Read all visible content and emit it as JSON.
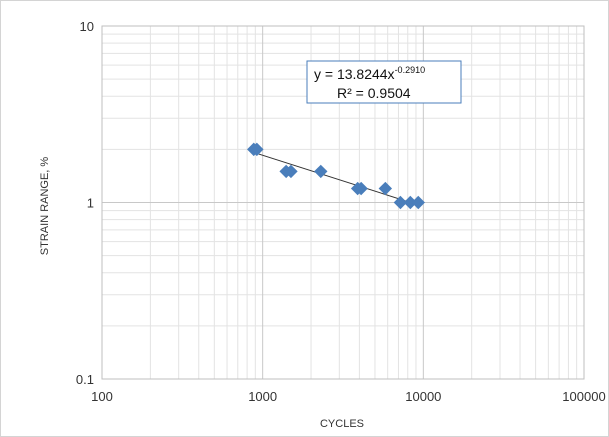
{
  "chart_data": {
    "type": "scatter",
    "title": "",
    "xlabel": "CYCLES",
    "ylabel": "STRAIN RANGE, %",
    "xscale": "log",
    "yscale": "log",
    "xlim": [
      100,
      100000
    ],
    "ylim": [
      0.1,
      10
    ],
    "x_ticks": [
      "100",
      "1000",
      "10000",
      "100000"
    ],
    "y_ticks": [
      "0.1",
      "1",
      "10"
    ],
    "grid": true,
    "legend": "none",
    "series": [
      {
        "color": "#4a7ebb",
        "marker": "diamond",
        "points": [
          [
            880,
            2.0
          ],
          [
            920,
            2.0
          ],
          [
            1400,
            1.5
          ],
          [
            1500,
            1.5
          ],
          [
            2300,
            1.5
          ],
          [
            3900,
            1.2
          ],
          [
            4100,
            1.2
          ],
          [
            5800,
            1.2
          ],
          [
            7200,
            1.0
          ],
          [
            8300,
            1.0
          ],
          [
            9300,
            1.0
          ]
        ]
      }
    ],
    "trendline": {
      "type": "power",
      "a": 13.8244,
      "b": -0.291,
      "x_range": [
        880,
        9300
      ],
      "color": "#333333",
      "equation_prefix": "y = 13.8244x",
      "equation_exponent": "-0.2910",
      "r2_label": "R² = 0.9504"
    }
  }
}
